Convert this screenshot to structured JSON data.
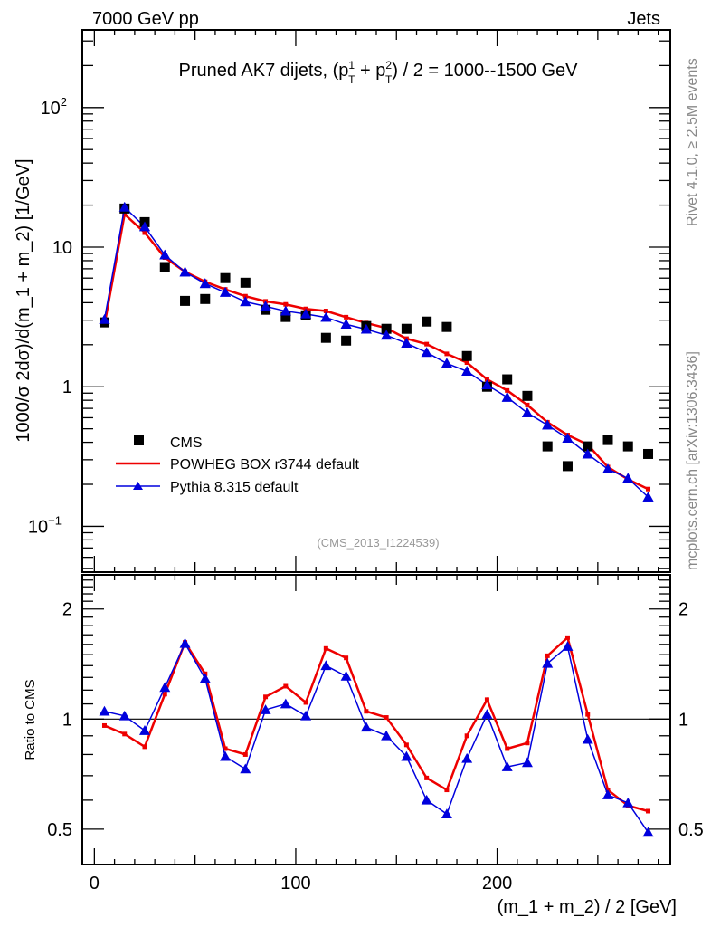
{
  "header": {
    "left_label": "7000 GeV pp",
    "right_label": "Jets"
  },
  "side_labels": {
    "rivet": "Rivet 4.1.0, ≥ 2.5M events",
    "mcplots": "mcplots.cern.ch [arXiv:1306.3436]"
  },
  "chart_data": [
    {
      "type": "line",
      "panel": "main",
      "title": "Pruned AK7 dijets, (p_T^1 + p_T^2) / 2 = 1000--1500 GeV",
      "title_parts": {
        "prefix": "Pruned AK7 dijets, (p",
        "sup1": "1",
        "sub1": "T",
        "mid": " + p",
        "sup2": "2",
        "sub2": "T",
        "suffix": ") / 2 = 1000--1500 GeV"
      },
      "analysis_id": "(CMS_2013_I1224539)",
      "xlabel": "(m_1 + m_2) / 2 [GeV]",
      "ylabel": "1000/σ   2dσ)/d(m_1 + m_2) [1/GeV]",
      "yscale": "log",
      "xlim": [
        -6,
        286
      ],
      "ylim": [
        0.047,
        360
      ],
      "y_ticks": [
        {
          "value": 0.1,
          "base": "10",
          "exp": "−1"
        },
        {
          "value": 1,
          "base": "1",
          "exp": ""
        },
        {
          "value": 10,
          "base": "10",
          "exp": ""
        },
        {
          "value": 100,
          "base": "10",
          "exp": "2"
        }
      ],
      "legend_position": "bottom-left",
      "x": [
        5,
        15,
        25,
        35,
        45,
        55,
        65,
        75,
        85,
        95,
        105,
        115,
        125,
        135,
        145,
        155,
        165,
        175,
        185,
        195,
        205,
        215,
        225,
        235,
        245,
        255,
        265,
        275
      ],
      "series": [
        {
          "name": "CMS",
          "style": "markers-square",
          "color": "#000000",
          "values": [
            2.89,
            18.9,
            15.1,
            7.2,
            4.12,
            4.25,
            6.0,
            5.56,
            3.56,
            3.16,
            3.25,
            2.24,
            2.14,
            2.72,
            2.6,
            2.6,
            2.93,
            2.68,
            1.66,
            1.0,
            1.13,
            0.86,
            0.374,
            0.27,
            0.374,
            0.415,
            0.374,
            0.33
          ]
        },
        {
          "name": "POWHEG BOX r3744 default",
          "style": "line",
          "color": "#ee0000",
          "values": [
            2.77,
            17.2,
            12.7,
            8.42,
            6.67,
            5.65,
            4.98,
            4.45,
            4.09,
            3.89,
            3.61,
            3.49,
            3.15,
            2.86,
            2.63,
            2.21,
            2.02,
            1.72,
            1.49,
            1.13,
            0.94,
            0.74,
            0.557,
            0.451,
            0.385,
            0.266,
            0.217,
            0.185
          ]
        },
        {
          "name": "Pythia 8.315 default",
          "style": "line-triangle",
          "color": "#0000dd",
          "values": [
            3.03,
            19.3,
            14.0,
            8.78,
            6.63,
            5.48,
            4.74,
            4.06,
            3.77,
            3.48,
            3.32,
            3.14,
            2.8,
            2.58,
            2.34,
            2.05,
            1.76,
            1.47,
            1.29,
            1.03,
            0.84,
            0.65,
            0.531,
            0.427,
            0.329,
            0.257,
            0.221,
            0.162
          ]
        }
      ]
    },
    {
      "type": "line",
      "panel": "ratio",
      "xlabel": "(m_1 + m_2) / 2 [GeV]",
      "ylabel": "Ratio to CMS",
      "yscale": "log",
      "xlim": [
        -6,
        286
      ],
      "ylim": [
        0.4,
        2.48
      ],
      "x_ticks": [
        0,
        100,
        200
      ],
      "x_tick_labels": [
        "0",
        "100",
        "200"
      ],
      "y_ticks": [
        0.5,
        1,
        2
      ],
      "y_tick_labels": [
        "0.5",
        "1",
        "2"
      ],
      "reference_line": 1,
      "x": [
        5,
        15,
        25,
        35,
        45,
        55,
        65,
        75,
        85,
        95,
        105,
        115,
        125,
        135,
        145,
        155,
        165,
        175,
        185,
        195,
        205,
        215,
        225,
        235,
        245,
        255,
        265,
        275
      ],
      "series": [
        {
          "name": "POWHEG BOX r3744 default",
          "color": "#ee0000",
          "values": [
            0.96,
            0.91,
            0.84,
            1.17,
            1.62,
            1.33,
            0.83,
            0.8,
            1.15,
            1.23,
            1.11,
            1.56,
            1.47,
            1.05,
            1.01,
            0.85,
            0.69,
            0.64,
            0.9,
            1.13,
            0.83,
            0.86,
            1.49,
            1.67,
            1.03,
            0.64,
            0.58,
            0.56
          ]
        },
        {
          "name": "Pythia 8.315 default",
          "color": "#0000dd",
          "values": [
            1.05,
            1.02,
            0.93,
            1.22,
            1.61,
            1.29,
            0.79,
            0.73,
            1.06,
            1.1,
            1.02,
            1.4,
            1.31,
            0.95,
            0.9,
            0.79,
            0.6,
            0.55,
            0.78,
            1.03,
            0.74,
            0.76,
            1.42,
            1.58,
            0.88,
            0.62,
            0.59,
            0.49
          ]
        }
      ]
    }
  ]
}
